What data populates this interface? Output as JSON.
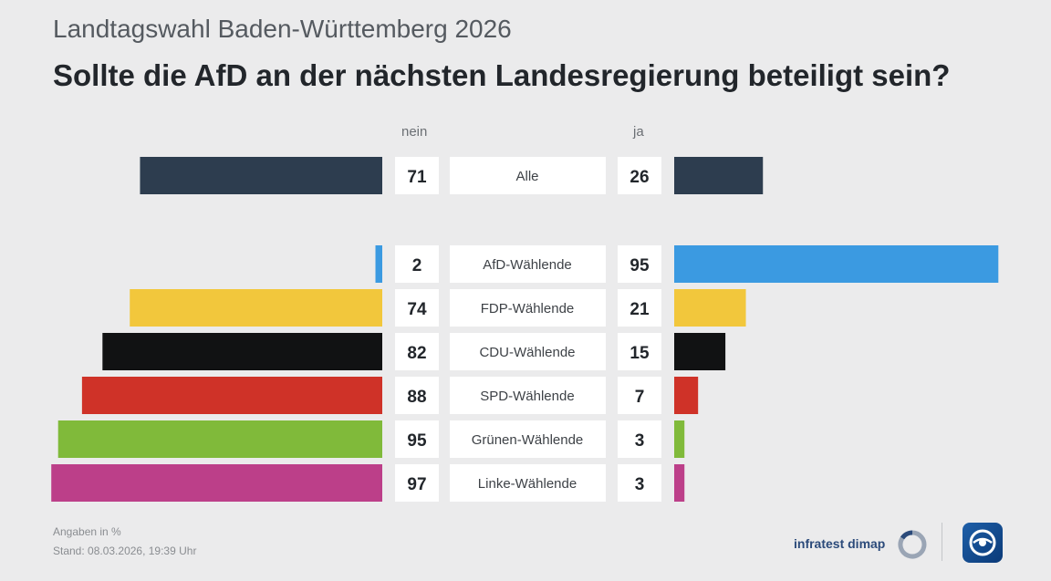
{
  "subtitle": "Landtagswahl Baden-Württemberg 2026",
  "title": "Sollte die AfD an der nächsten Landesregierung beteiligt sein?",
  "footer": {
    "unit_note": "Angaben in %",
    "stand": "Stand:  08.03.2026, 19:39 Uhr",
    "source": "infratest dimap"
  },
  "chart_data": {
    "type": "bar",
    "orientation": "diverging-horizontal",
    "columns": [
      "nein",
      "ja"
    ],
    "categories": [
      "Alle",
      "AfD-Wählende",
      "FDP-Wählende",
      "CDU-Wählende",
      "SPD-Wählende",
      "Grünen-Wählende",
      "Linke-Wählende"
    ],
    "series": [
      {
        "name": "nein",
        "values": [
          71,
          2,
          74,
          82,
          88,
          95,
          97
        ]
      },
      {
        "name": "ja",
        "values": [
          26,
          95,
          21,
          15,
          7,
          3,
          3
        ]
      }
    ],
    "colors": [
      "#2d3d4f",
      "#3b9ae1",
      "#f2c73c",
      "#111213",
      "#cf3228",
      "#80ba3a",
      "#bc3f89"
    ],
    "unit": "%"
  }
}
